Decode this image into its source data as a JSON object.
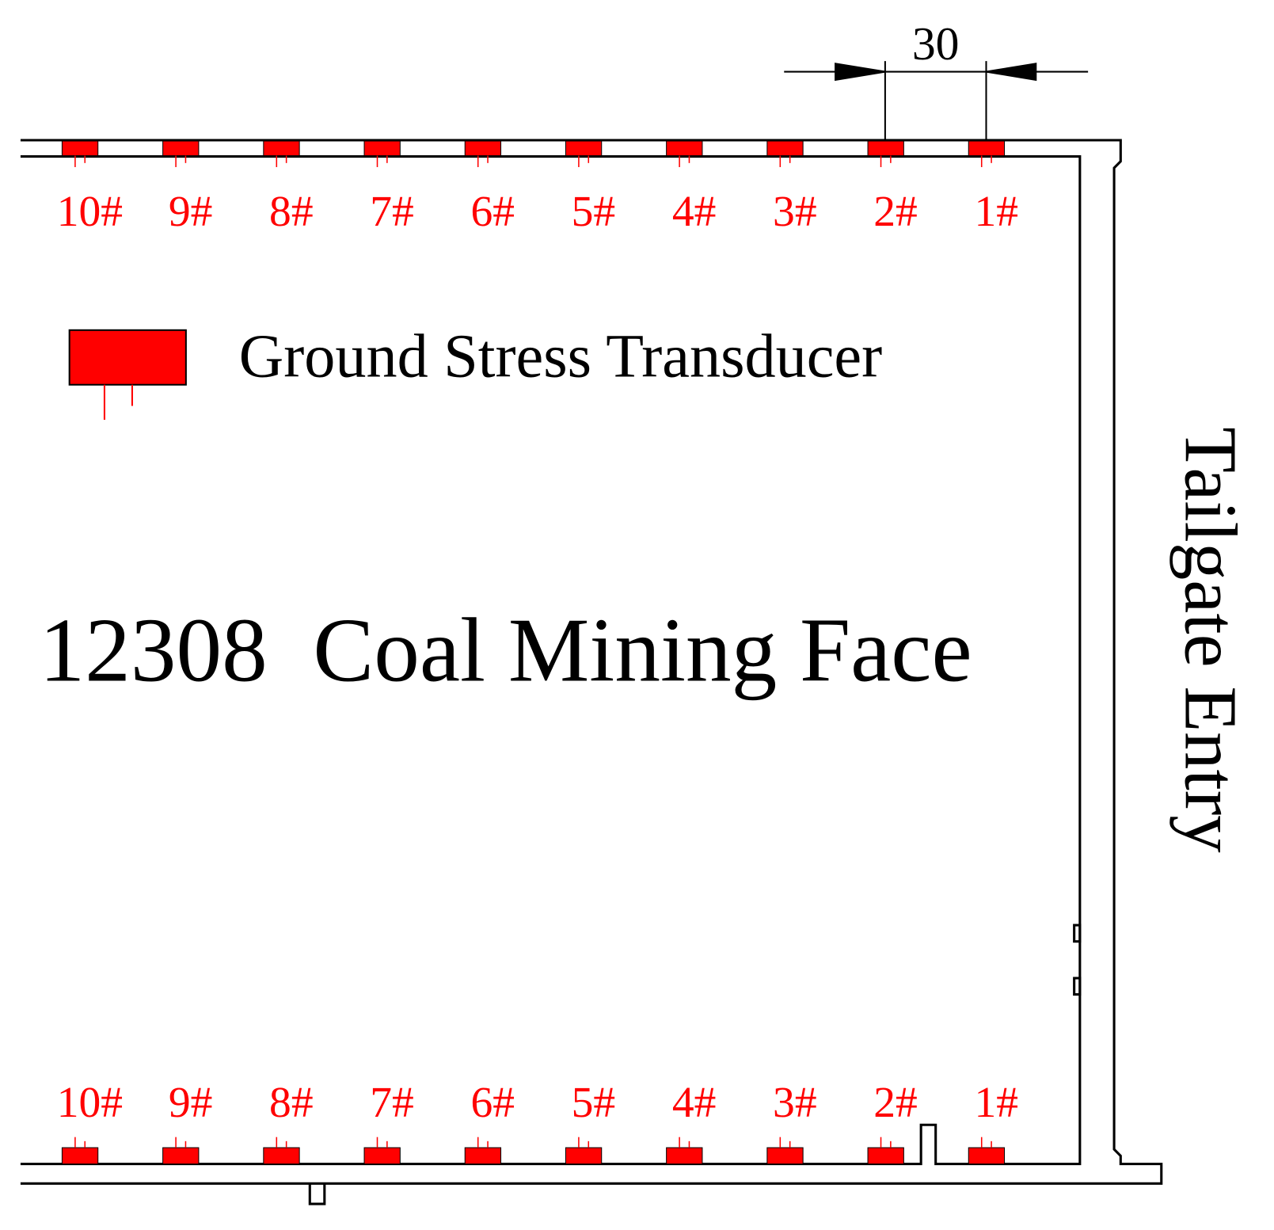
{
  "dimension": "30",
  "top_transducers": [
    "10#",
    "9#",
    "8#",
    "7#",
    "6#",
    "5#",
    "4#",
    "3#",
    "2#",
    "1#"
  ],
  "bottom_transducers": [
    "10#",
    "9#",
    "8#",
    "7#",
    "6#",
    "5#",
    "4#",
    "3#",
    "2#",
    "1#"
  ],
  "legend": {
    "label": "Ground Stress Transducer"
  },
  "face_label": "12308  Coal Mining Face",
  "entry_label": "Tailgate Entry"
}
